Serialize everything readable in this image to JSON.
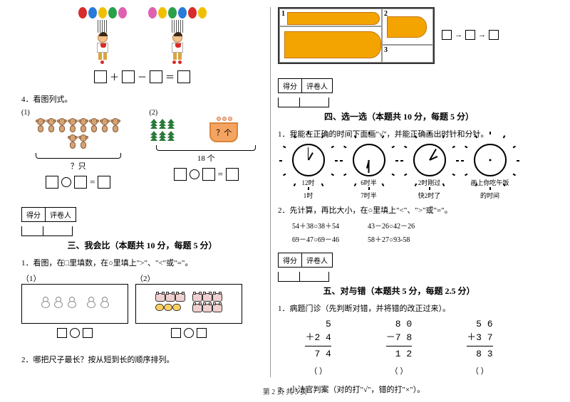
{
  "footer": "第 2 页 共 5 页",
  "balloons": {
    "left_colors": [
      "#d92b2b",
      "#2a7ad9",
      "#f0c000",
      "#2aa04a",
      "#e060b0"
    ],
    "right_colors": [
      "#e060b0",
      "#f0c000",
      "#2aa04a",
      "#2a7ad9",
      "#d92b2b",
      "#f0c000"
    ],
    "left_dots": 1,
    "right_dots": 2,
    "dot_color": "#d92b2b"
  },
  "q4": {
    "title": "4．看图列式。",
    "label1": "(1)",
    "label2": "(2)",
    "monkey_count": 10,
    "monkey_brace_label": "？只",
    "tree_count": 6,
    "basket_label": "？个",
    "tree_brace_label": "18 个"
  },
  "score": {
    "c1": "得分",
    "c2": "评卷人"
  },
  "sec3": {
    "title": "三、我会比（本题共 10 分，每题 5 分）",
    "q1": "1．看图，在□里填数，在○里填上\">\"、\"<\"或\"=\"。",
    "l1": "（1）",
    "l2": "（2）",
    "q2": "2．哪把尺子最长？按从短到长的顺序排列。"
  },
  "fish_grid": {
    "n1": "1",
    "n2": "2",
    "n3": "3",
    "fish_color": "#f4a400"
  },
  "sec4": {
    "title": "四、选一选（本题共 10 分，每题 5 分）",
    "q1": "1．我能在正确的时间下面画\"√\"，并能正确画出时针和分针。",
    "clocks": [
      {
        "top": "12时",
        "bot": "1时",
        "hh": 30,
        "mh": 0,
        "dots": false
      },
      {
        "top": "6时半",
        "bot": "7时半",
        "hh": 195,
        "mh": 180,
        "dots": false
      },
      {
        "top": "2时刚过",
        "bot": "快2时了",
        "hh": 65,
        "mh": 30,
        "dots": false
      },
      {
        "top": "画上你吃午饭",
        "bot": "的时间",
        "hh": null,
        "mh": null,
        "dots": true
      }
    ],
    "q2": "2．先计算，再比大小，在○里填上\"<\"、\">\"或\"=\"。",
    "calc": [
      [
        "54＋38○38＋54",
        "43－26○42－26"
      ],
      [
        "69－47○69－46",
        "58＋27○93-58"
      ]
    ]
  },
  "sec5": {
    "title": "五、对与错（本题共 5 分，每题 2.5 分）",
    "q1": "1．病题门诊（先判断对错，并将错的改正过来）。",
    "problems": [
      {
        "a": "5",
        "op": "＋2 4",
        "r": "7 4"
      },
      {
        "a": "8 0",
        "op": "－7 8",
        "r": "1 2"
      },
      {
        "a": "5 6",
        "op": "＋3 7",
        "r": "8 3"
      }
    ],
    "paren": "（       ）",
    "q2": "2．小法官判案（对的打\"√\"，错的打\"×\"）。"
  }
}
